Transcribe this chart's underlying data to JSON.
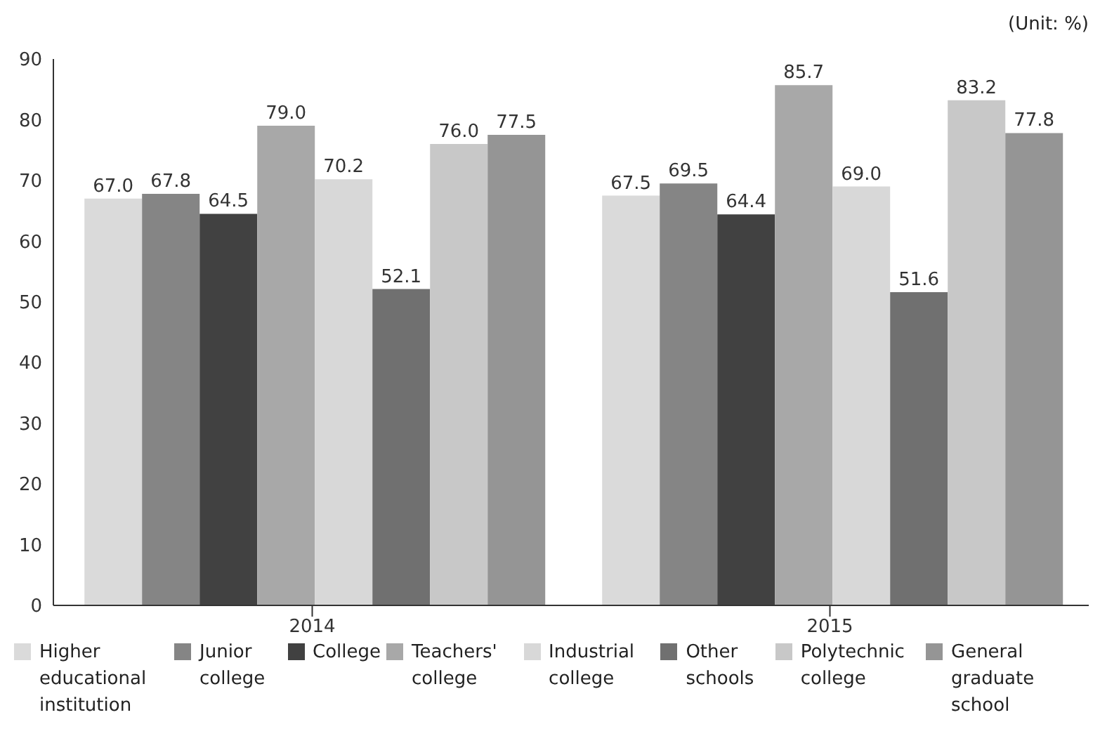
{
  "chart_data": {
    "type": "bar",
    "annotations": [
      "(Unit: %)"
    ],
    "categories": [
      "2014",
      "2015"
    ],
    "series": [
      {
        "name": "Higher educational institution",
        "color": "#dadada",
        "values": [
          67.0,
          67.5
        ],
        "value_labels": [
          "67.0",
          "67.5"
        ]
      },
      {
        "name": "Junior college",
        "color": "#858585",
        "values": [
          67.8,
          69.5
        ],
        "value_labels": [
          "67.8",
          "69.5"
        ]
      },
      {
        "name": "College",
        "color": "#414141",
        "values": [
          64.5,
          64.4
        ],
        "value_labels": [
          "64.5",
          "64.4"
        ]
      },
      {
        "name": "Teachers' college",
        "color": "#a8a8a8",
        "values": [
          79.0,
          85.7
        ],
        "value_labels": [
          "79.0",
          "85.7"
        ]
      },
      {
        "name": "Industrial college",
        "color": "#d8d8d8",
        "values": [
          70.2,
          69.0
        ],
        "value_labels": [
          "70.2",
          "69.0"
        ]
      },
      {
        "name": "Other schools",
        "color": "#707070",
        "values": [
          52.1,
          51.6
        ],
        "value_labels": [
          "52.1",
          "51.6"
        ]
      },
      {
        "name": "Polytechnic college",
        "color": "#c8c8c8",
        "values": [
          76.0,
          83.2
        ],
        "value_labels": [
          "76.0",
          "83.2"
        ]
      },
      {
        "name": "General graduate school",
        "color": "#959595",
        "values": [
          77.5,
          77.8
        ],
        "value_labels": [
          "77.5",
          "77.8"
        ]
      }
    ],
    "ylim": [
      0,
      90
    ],
    "yticks": [
      0,
      10,
      20,
      30,
      40,
      50,
      60,
      70,
      80,
      90
    ],
    "grid": false,
    "legend": "bottom"
  }
}
